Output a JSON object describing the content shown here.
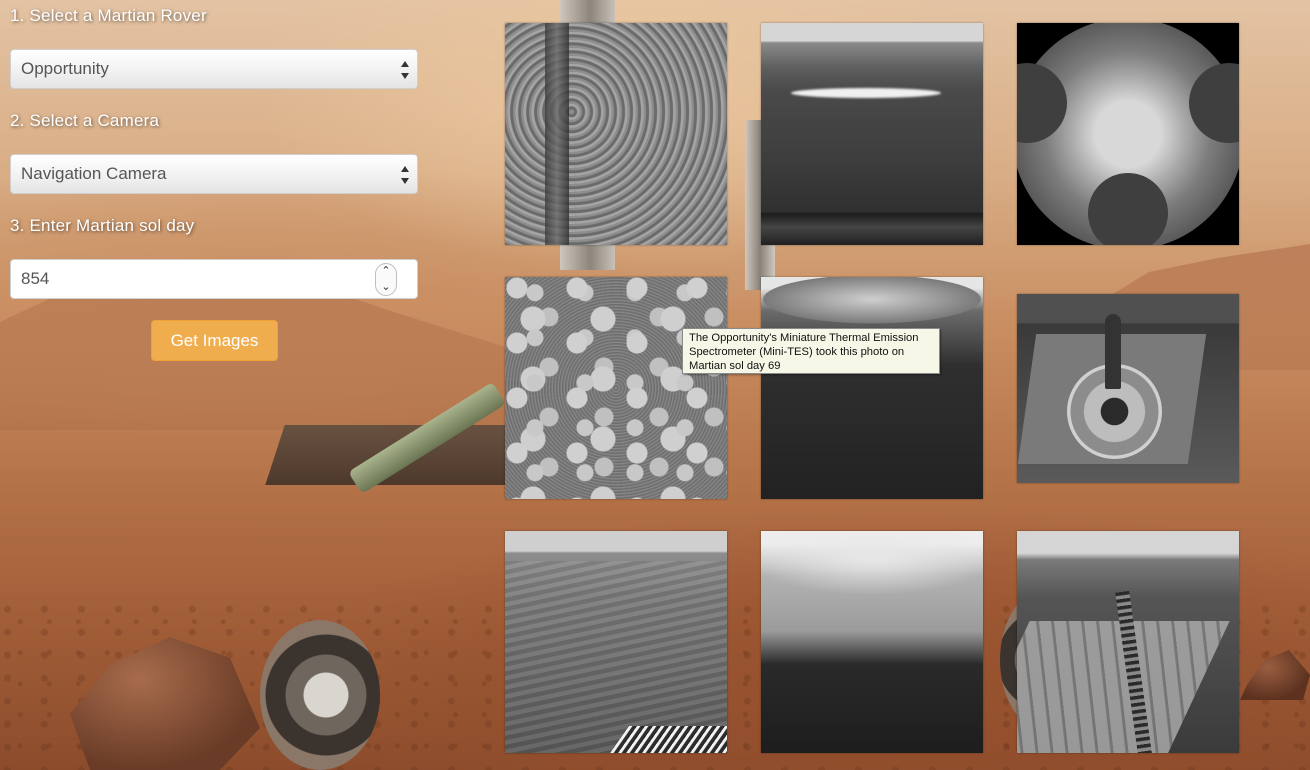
{
  "form": {
    "rover_label": "1. Select a Martian Rover",
    "rover_value": "Opportunity",
    "camera_label": "2. Select a Camera",
    "camera_value": "Navigation Camera",
    "sol_label": "3. Enter Martian sol day",
    "sol_value": "854",
    "submit_label": "Get Images"
  },
  "tooltip": {
    "text": "The Opportunity's Miniature Thermal Emission Spectrometer (Mini-TES) took this photo on Martian sol day 69"
  },
  "photos": [
    {
      "name": "rock-closeup"
    },
    {
      "name": "horizon-streak"
    },
    {
      "name": "circular-calibration-target"
    },
    {
      "name": "blueberry-spherules"
    },
    {
      "name": "hazcam-shadow"
    },
    {
      "name": "sundial-calibration-target"
    },
    {
      "name": "ripples-and-tracks"
    },
    {
      "name": "fisheye-terrain"
    },
    {
      "name": "bedrock-with-tracks"
    }
  ],
  "colors": {
    "button": "#f0ad4e",
    "label_text": "#ffffff",
    "field_text": "#555555",
    "tooltip_bg": "#f7f7e8"
  }
}
